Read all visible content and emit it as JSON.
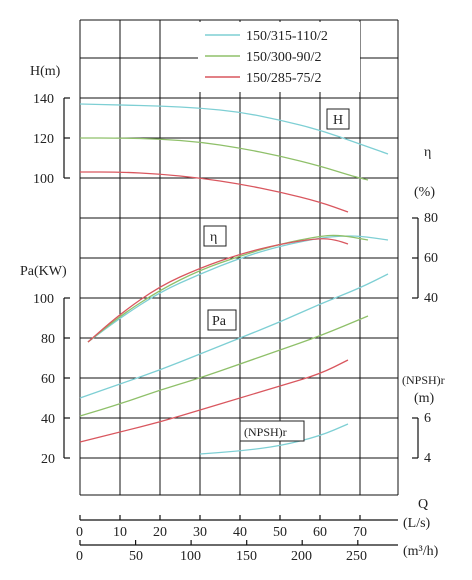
{
  "chart_data": {
    "type": "line",
    "legend": [
      {
        "name": "150/315-110/2",
        "color": "#7ecfd4"
      },
      {
        "name": "150/300-90/2",
        "color": "#8fc06a"
      },
      {
        "name": "150/285-75/2",
        "color": "#d9575f"
      }
    ],
    "x_axis_ls": {
      "label": "(L/s)",
      "ticks": [
        "0",
        "10",
        "20",
        "30",
        "40",
        "50",
        "60",
        "70"
      ],
      "range": [
        0,
        75
      ]
    },
    "x_axis_m3h": {
      "label": "(m³/h)",
      "ticks": [
        "0",
        "50",
        "100",
        "150",
        "200",
        "250"
      ],
      "values": [
        0,
        50,
        100,
        150,
        200,
        250
      ]
    },
    "q_label": "Q",
    "H_axis": {
      "label": "H(m)",
      "ticks": [
        "140",
        "120",
        "100"
      ]
    },
    "eta_axis": {
      "label": "η",
      "unit": "(%)",
      "ticks": [
        "80",
        "60",
        "40"
      ]
    },
    "Pa_axis": {
      "label": "Pa(KW)",
      "ticks": [
        "100",
        "80",
        "60",
        "40",
        "20"
      ]
    },
    "npsh_axis": {
      "label": "(NPSH)r",
      "unit": "(m)",
      "ticks": [
        "6",
        "4"
      ]
    },
    "box_labels": {
      "H": "H",
      "eta": "η",
      "Pa": "Pa",
      "npsh": "(NPSH)r"
    },
    "series": {
      "H": [
        {
          "name": "150/315-110/2",
          "x": [
            0,
            10,
            20,
            30,
            40,
            50,
            60,
            70,
            77
          ],
          "y": [
            137,
            136.5,
            136,
            135,
            133,
            129,
            124,
            117,
            112
          ]
        },
        {
          "name": "150/300-90/2",
          "x": [
            0,
            10,
            20,
            30,
            40,
            50,
            60,
            68,
            72
          ],
          "y": [
            120,
            120,
            119.5,
            118,
            115,
            111,
            106,
            101,
            99
          ]
        },
        {
          "name": "150/285-75/2",
          "x": [
            0,
            10,
            20,
            30,
            40,
            50,
            60,
            67
          ],
          "y": [
            103,
            103,
            102,
            100,
            97,
            93,
            88,
            83
          ]
        }
      ],
      "eta": [
        {
          "name": "150/315-110/2",
          "x": [
            2,
            10,
            20,
            30,
            40,
            50,
            60,
            65,
            70,
            77
          ],
          "y": [
            18,
            30,
            43,
            52,
            60,
            66,
            70,
            71,
            71,
            69
          ]
        },
        {
          "name": "150/300-90/2",
          "x": [
            2,
            10,
            20,
            30,
            40,
            50,
            60,
            65,
            72
          ],
          "y": [
            18,
            31,
            44,
            54,
            61,
            67,
            71,
            71.5,
            69
          ]
        },
        {
          "name": "150/285-75/2",
          "x": [
            2,
            10,
            20,
            30,
            40,
            50,
            60,
            64,
            67
          ],
          "y": [
            18,
            32,
            46,
            55,
            62,
            67,
            70,
            69,
            67
          ]
        }
      ],
      "Pa": [
        {
          "name": "150/315-110/2",
          "x": [
            0,
            10,
            20,
            30,
            40,
            50,
            60,
            70,
            77
          ],
          "y": [
            50,
            57,
            64,
            72,
            80,
            88,
            97,
            105,
            112
          ]
        },
        {
          "name": "150/300-90/2",
          "x": [
            0,
            10,
            20,
            30,
            40,
            50,
            60,
            72
          ],
          "y": [
            41,
            47,
            54,
            60,
            67,
            74,
            81,
            91
          ]
        },
        {
          "name": "150/285-75/2",
          "x": [
            0,
            10,
            20,
            30,
            40,
            50,
            60,
            67
          ],
          "y": [
            28,
            33,
            38,
            44,
            50,
            56,
            62,
            69
          ]
        }
      ],
      "npsh": [
        {
          "name": "150/315-110/2",
          "x": [
            30,
            40,
            50,
            60,
            67
          ],
          "y": [
            4.2,
            4.35,
            4.6,
            5.1,
            5.7
          ]
        }
      ]
    }
  }
}
